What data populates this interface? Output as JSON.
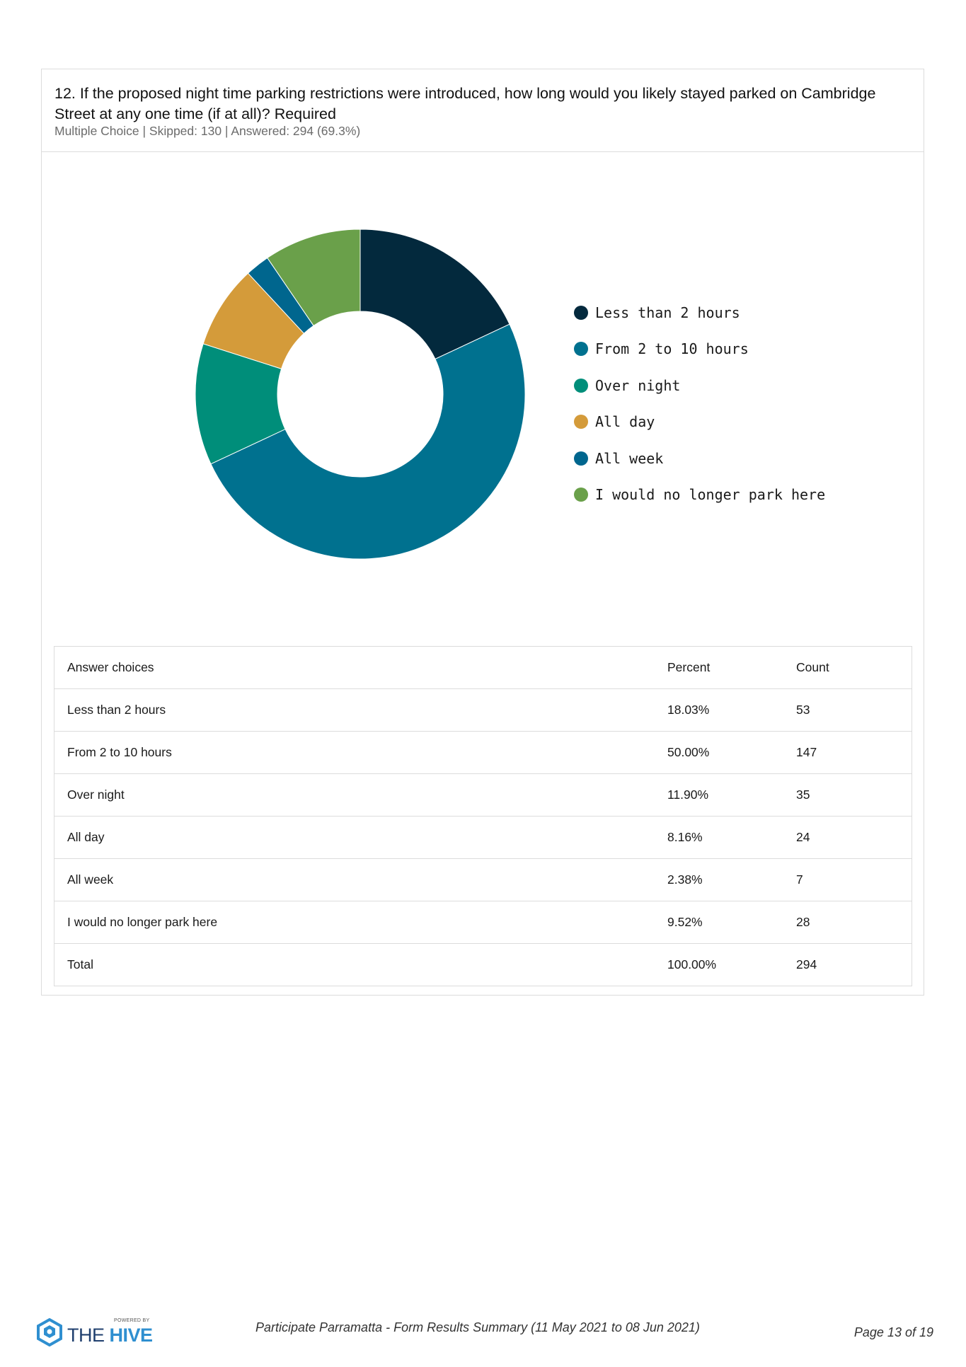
{
  "question": {
    "title": "12. If the proposed night time parking restrictions were introduced, how long would you likely stayed parked on Cambridge Street at any one time (if at all)? Required",
    "meta": "Multiple Choice | Skipped: 130 | Answered: 294 (69.3%)"
  },
  "chart_data": {
    "type": "pie",
    "donut": true,
    "title": "",
    "legend_position": "right",
    "categories": [
      "Less than 2 hours",
      "From 2 to 10 hours",
      "Over night",
      "All day",
      "All week",
      "I would no longer park here"
    ],
    "values": [
      18.03,
      50.0,
      11.9,
      8.16,
      2.38,
      9.52
    ],
    "colors": [
      "#03293d",
      "#00718f",
      "#008e7a",
      "#d49b3a",
      "#00668e",
      "#6aa04a"
    ]
  },
  "table": {
    "headers": {
      "choice": "Answer choices",
      "percent": "Percent",
      "count": "Count"
    },
    "rows": [
      {
        "choice": "Less than 2 hours",
        "percent": "18.03%",
        "count": "53"
      },
      {
        "choice": "From 2 to 10 hours",
        "percent": "50.00%",
        "count": "147"
      },
      {
        "choice": "Over night",
        "percent": "11.90%",
        "count": "35"
      },
      {
        "choice": "All day",
        "percent": "8.16%",
        "count": "24"
      },
      {
        "choice": "All week",
        "percent": "2.38%",
        "count": "7"
      },
      {
        "choice": "I would no longer park here",
        "percent": "9.52%",
        "count": "28"
      },
      {
        "choice": "Total",
        "percent": "100.00%",
        "count": "294"
      }
    ]
  },
  "footer": {
    "logo_powered": "POWERED BY",
    "logo_the": "THE",
    "logo_hive": "HIVE",
    "center": "Participate Parramatta - Form Results Summary (11 May 2021 to 08 Jun 2021)",
    "page": "Page 13 of 19"
  },
  "icons": {
    "logo": "hive-hexagon-logo-icon"
  }
}
